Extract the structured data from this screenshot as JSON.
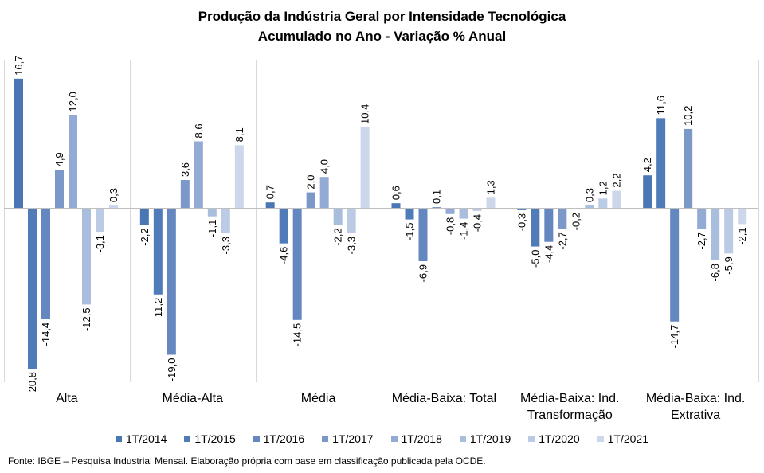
{
  "chart_data": {
    "type": "bar",
    "title": "Produção da Indústria Geral por Intensidade Tecnológica",
    "subtitle": "Acumulado no Ano - Variação % Anual",
    "categories": [
      [
        "Alta"
      ],
      [
        "Média-Alta"
      ],
      [
        "Média"
      ],
      [
        "Média-Baixa: Total"
      ],
      [
        "Média-Baixa: Ind.",
        "Transformação"
      ],
      [
        "Média-Baixa: Ind.",
        "Extrativa"
      ]
    ],
    "series": [
      {
        "name": "1T/2014",
        "color": "#4a77b4",
        "values": [
          16.7,
          -2.2,
          0.7,
          0.6,
          -0.3,
          4.2
        ]
      },
      {
        "name": "1T/2015",
        "color": "#4f7cb8",
        "values": [
          -20.8,
          -11.2,
          -4.6,
          -1.5,
          -5.0,
          11.6
        ]
      },
      {
        "name": "1T/2016",
        "color": "#6587bf",
        "values": [
          -14.4,
          -19.0,
          -14.5,
          -6.9,
          -4.4,
          -14.7
        ]
      },
      {
        "name": "1T/2017",
        "color": "#7b98c9",
        "values": [
          4.9,
          3.6,
          2.0,
          0.1,
          -2.7,
          10.2
        ]
      },
      {
        "name": "1T/2018",
        "color": "#93abd4",
        "values": [
          12.0,
          8.6,
          4.0,
          -0.8,
          -0.2,
          -2.7
        ]
      },
      {
        "name": "1T/2019",
        "color": "#a9bddd",
        "values": [
          -12.5,
          -1.1,
          -2.2,
          -1.4,
          0.3,
          -6.8
        ]
      },
      {
        "name": "1T/2020",
        "color": "#bccbe5",
        "values": [
          -3.1,
          -3.3,
          -3.3,
          -0.4,
          1.2,
          -5.9
        ]
      },
      {
        "name": "1T/2021",
        "color": "#ccd7eb",
        "values": [
          0.3,
          8.1,
          10.4,
          1.3,
          2.2,
          -2.1
        ]
      }
    ],
    "ylim": [
      -21,
      17.5
    ],
    "data_labels": true,
    "label_decimal_separator": ",",
    "legend_position": "bottom",
    "grid": "vertical category dividers"
  },
  "source": "Fonte: IBGE – Pesquisa Industrial Mensal. Elaboração própria com base em classificação publicada pela OCDE."
}
